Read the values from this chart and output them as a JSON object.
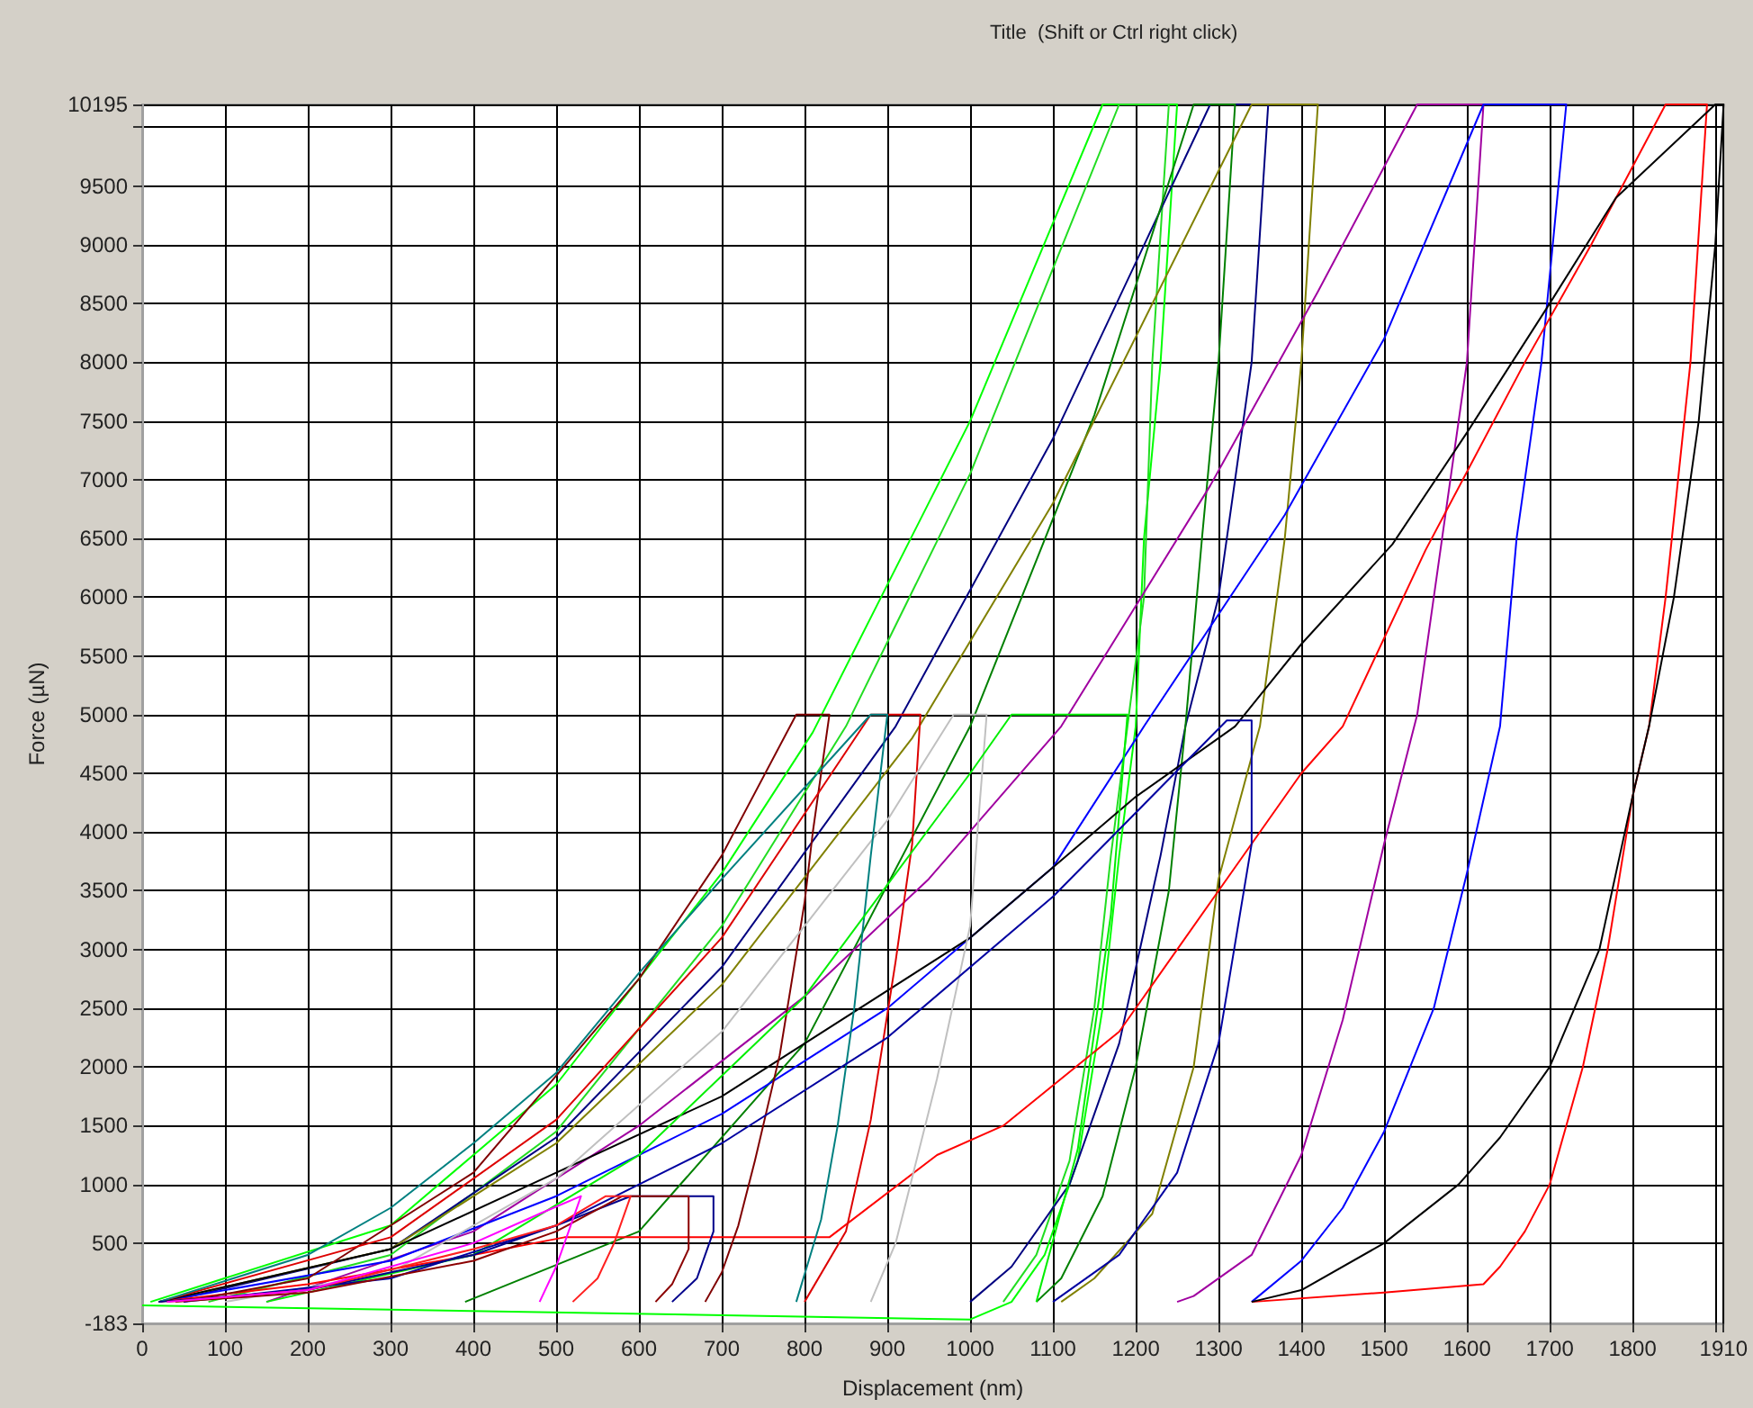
{
  "chart_data": {
    "type": "line",
    "title": "Title  (Shift or Ctrl right click)",
    "xlabel": "Displacement (nm)",
    "ylabel": "Force (µN)",
    "xlim": [
      0,
      1910
    ],
    "xticks": [
      0,
      100,
      200,
      300,
      400,
      500,
      600,
      700,
      800,
      900,
      1000,
      1100,
      1200,
      1300,
      1400,
      1500,
      1600,
      1700,
      1800,
      {
        "value": 1900,
        "label": null
      },
      1910
    ],
    "ylim": [
      -183,
      10195
    ],
    "yticks": [
      -183,
      500,
      1000,
      1500,
      2000,
      2500,
      3000,
      3500,
      4000,
      4500,
      5000,
      5500,
      6000,
      6500,
      7000,
      7500,
      8000,
      8500,
      9000,
      9500,
      {
        "value": 10000,
        "label": null
      },
      10195
    ],
    "grid": true,
    "series": [
      {
        "color": "#00ff00",
        "x": [
          10,
          300,
          500,
          700,
          810,
          1000,
          1160,
          1250,
          1230,
          1210,
          1200,
          1180,
          1160,
          1130,
          1090,
          1050,
          1000,
          0
        ],
        "values": [
          0,
          650,
          1850,
          3650,
          4850,
          7500,
          10195,
          10195,
          8000,
          6500,
          4900,
          3800,
          2500,
          1200,
          400,
          0,
          -150,
          -30
        ]
      },
      {
        "color": "#22dd22",
        "x": [
          80,
          300,
          500,
          700,
          850,
          1000,
          1180,
          1240,
          1220,
          1210,
          1190,
          1170,
          1150,
          1120,
          1080,
          1040
        ],
        "values": [
          0,
          400,
          1450,
          3200,
          4900,
          7050,
          10195,
          10195,
          8000,
          6000,
          4900,
          3800,
          2500,
          1200,
          400,
          0
        ]
      },
      {
        "color": "#000080",
        "x": [
          30,
          300,
          500,
          700,
          910,
          1100,
          1290,
          1360,
          1340,
          1300,
          1260,
          1230,
          1180,
          1120,
          1050,
          1000
        ],
        "values": [
          0,
          450,
          1400,
          2850,
          4900,
          7350,
          10195,
          10195,
          8000,
          6000,
          4900,
          3800,
          2200,
          1000,
          300,
          0
        ]
      },
      {
        "color": "#008000",
        "x": [
          390,
          600,
          800,
          1000,
          1150,
          1270,
          1320,
          1300,
          1280,
          1260,
          1240,
          1200,
          1160,
          1110,
          1080
        ],
        "values": [
          0,
          600,
          2200,
          4900,
          7550,
          10195,
          10195,
          8000,
          6500,
          4900,
          3500,
          2000,
          900,
          200,
          0
        ]
      },
      {
        "color": "#808000",
        "x": [
          20,
          300,
          500,
          700,
          930,
          1100,
          1340,
          1420,
          1400,
          1380,
          1350,
          1300,
          1270,
          1220,
          1150,
          1110
        ],
        "values": [
          0,
          450,
          1350,
          2700,
          4800,
          6800,
          10195,
          10195,
          8000,
          6500,
          4900,
          3600,
          2000,
          750,
          200,
          0
        ]
      },
      {
        "color": "#a000a0",
        "x": [
          150,
          400,
          600,
          800,
          950,
          1110,
          1290,
          1420,
          1540,
          1620,
          1600,
          1570,
          1540,
          1500,
          1450,
          1400,
          1340,
          1270,
          1250
        ],
        "values": [
          0,
          600,
          1500,
          2600,
          3600,
          4900,
          6950,
          8600,
          10195,
          10195,
          8000,
          6500,
          5000,
          3900,
          2400,
          1250,
          400,
          50,
          0
        ]
      },
      {
        "color": "#0000ff",
        "x": [
          20,
          300,
          500,
          700,
          900,
          1100,
          1210,
          1380,
          1500,
          1620,
          1720,
          1690,
          1660,
          1640,
          1600,
          1560,
          1500,
          1450,
          1400,
          1340
        ],
        "values": [
          0,
          350,
          900,
          1600,
          2500,
          3700,
          4900,
          6700,
          8200,
          10195,
          10195,
          8000,
          6500,
          4900,
          3650,
          2500,
          1450,
          800,
          350,
          0
        ]
      },
      {
        "color": "#ff0000",
        "x": [
          20,
          200,
          400,
          510,
          830,
          960,
          1040,
          1180,
          1300,
          1400,
          1450,
          1550,
          1670,
          1750,
          1840,
          1890,
          1870,
          1840,
          1820,
          1800,
          1770,
          1740,
          1720,
          1700,
          1670,
          1640,
          1620,
          1500,
          1340
        ],
        "values": [
          0,
          150,
          400,
          550,
          550,
          1250,
          1500,
          2300,
          3500,
          4500,
          4900,
          6400,
          8000,
          9000,
          10195,
          10195,
          8000,
          6000,
          4900,
          4300,
          3000,
          2000,
          1500,
          1000,
          600,
          300,
          150,
          80,
          0
        ]
      },
      {
        "color": "#000000",
        "x": [
          20,
          300,
          500,
          700,
          1000,
          1100,
          1200,
          1320,
          1400,
          1510,
          1600,
          1700,
          1780,
          1900,
          1910,
          1900,
          1880,
          1850,
          1820,
          1800,
          1760,
          1700,
          1640,
          1590,
          1500,
          1400,
          1340
        ],
        "values": [
          0,
          450,
          1100,
          1750,
          3100,
          3700,
          4300,
          4900,
          5600,
          6450,
          7400,
          8500,
          9400,
          10195,
          10195,
          9000,
          7500,
          6000,
          4900,
          4300,
          3000,
          2000,
          1400,
          1000,
          500,
          100,
          0
        ]
      },
      {
        "color": "#800000",
        "x": [
          50,
          200,
          400,
          600,
          700,
          790,
          830,
          810,
          800,
          770,
          740,
          720,
          700,
          680
        ],
        "values": [
          0,
          200,
          1100,
          2750,
          3800,
          5000,
          5000,
          4000,
          3400,
          2100,
          1200,
          650,
          250,
          0
        ]
      },
      {
        "color": "#dd0000",
        "x": [
          20,
          300,
          500,
          700,
          880,
          940,
          930,
          910,
          880,
          850,
          800
        ],
        "values": [
          0,
          550,
          1550,
          3100,
          5000,
          5000,
          3900,
          2900,
          1550,
          600,
          0
        ]
      },
      {
        "color": "#c0c0c0",
        "x": [
          100,
          300,
          500,
          700,
          900,
          980,
          1020,
          1000,
          960,
          910,
          880
        ],
        "values": [
          0,
          250,
          1050,
          2300,
          4100,
          5000,
          5000,
          3200,
          1900,
          500,
          0
        ]
      },
      {
        "color": "#008080",
        "x": [
          20,
          200,
          300,
          400,
          500,
          600,
          700,
          880,
          900,
          880,
          860,
          840,
          820,
          790
        ],
        "values": [
          0,
          400,
          800,
          1350,
          1950,
          2800,
          3600,
          5000,
          5000,
          3800,
          2500,
          1500,
          700,
          0
        ]
      },
      {
        "color": "#00ee00",
        "x": [
          150,
          400,
          600,
          800,
          1000,
          1050,
          1190,
          1170,
          1130,
          1080
        ],
        "values": [
          0,
          400,
          1250,
          2600,
          4500,
          5000,
          5000,
          3300,
          1300,
          0
        ]
      },
      {
        "color": "#0000a0",
        "x": [
          50,
          300,
          500,
          700,
          900,
          1100,
          1310,
          1340,
          1340,
          1300,
          1250,
          1180,
          1100
        ],
        "values": [
          0,
          200,
          650,
          1350,
          2250,
          3450,
          4950,
          4950,
          3900,
          2200,
          1100,
          400,
          0
        ]
      },
      {
        "color": "#00008b",
        "x": [
          20,
          200,
          400,
          500,
          590,
          690,
          690,
          680,
          670,
          640
        ],
        "values": [
          0,
          100,
          400,
          650,
          900,
          900,
          600,
          400,
          200,
          0
        ]
      },
      {
        "color": "#8b0000",
        "x": [
          40,
          200,
          400,
          500,
          580,
          660,
          660,
          640,
          620
        ],
        "values": [
          0,
          80,
          350,
          600,
          900,
          900,
          450,
          150,
          0
        ]
      },
      {
        "color": "#ff2020",
        "x": [
          30,
          200,
          400,
          500,
          560,
          590,
          570,
          550,
          520
        ],
        "values": [
          0,
          100,
          450,
          650,
          900,
          900,
          500,
          200,
          0
        ]
      },
      {
        "color": "#ff00ff",
        "x": [
          30,
          200,
          400,
          480,
          530,
          520,
          500,
          480
        ],
        "values": [
          0,
          100,
          500,
          750,
          900,
          700,
          300,
          0
        ]
      }
    ]
  }
}
